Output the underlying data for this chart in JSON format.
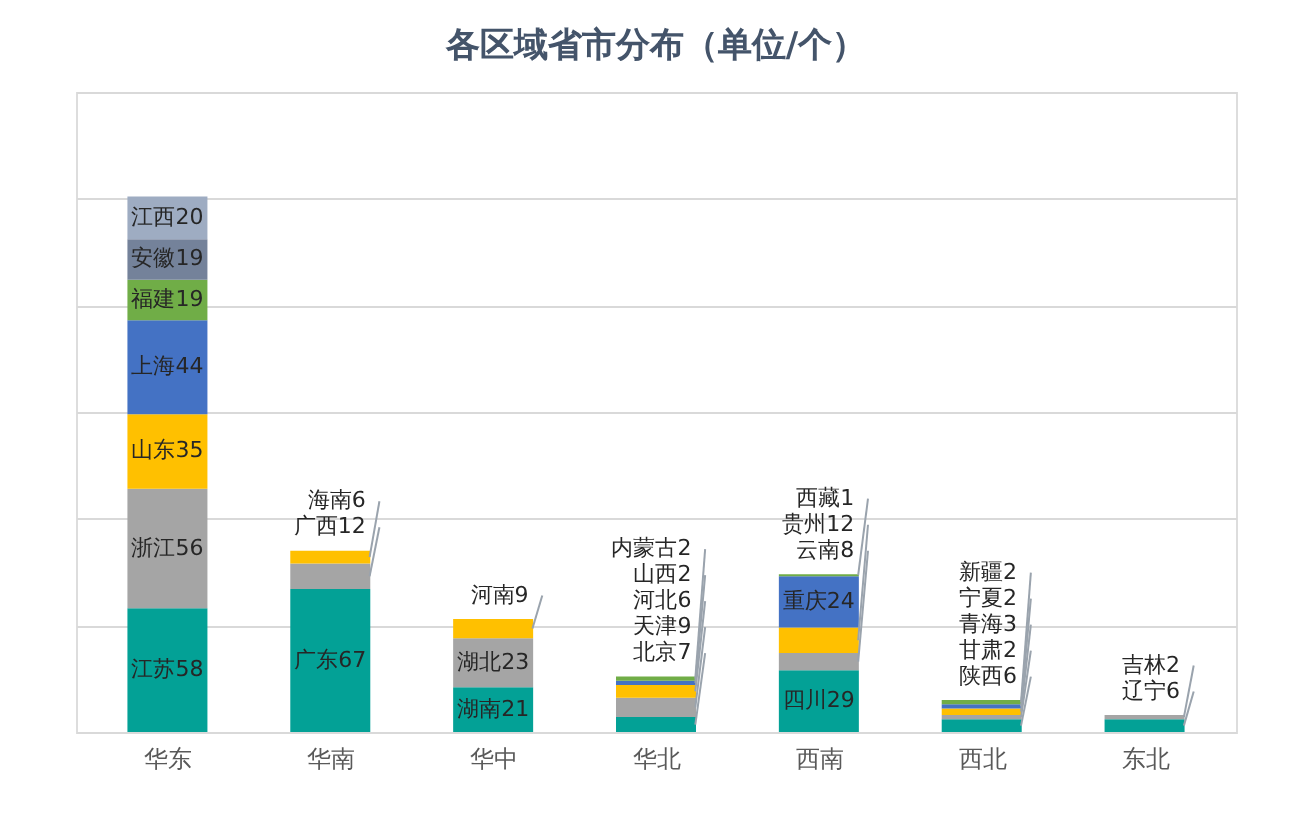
{
  "chart_data": {
    "type": "bar",
    "title": "各区域省市分布（单位/个）",
    "categories": [
      "华东",
      "华南",
      "华中",
      "华北",
      "西南",
      "西北",
      "东北"
    ],
    "stacked": true,
    "series": [
      {
        "color": "#03a196",
        "values": [
          58,
          67,
          21,
          7,
          29,
          6,
          6
        ],
        "value_labels": [
          "江苏58",
          "广东67",
          "湖南21",
          "北京7",
          "四川29",
          "陕西6",
          "辽宁6"
        ]
      },
      {
        "color": "#a5a5a5",
        "values": [
          56,
          12,
          23,
          9,
          8,
          2,
          2
        ],
        "value_labels": [
          "浙江56",
          "广西12",
          "湖北23",
          "天津9",
          "云南8",
          "甘肃2",
          "吉林2"
        ]
      },
      {
        "color": "#ffc000",
        "values": [
          35,
          6,
          9,
          6,
          12,
          3,
          null
        ],
        "value_labels": [
          "山东35",
          "海南6",
          "河南9",
          "河北6",
          "贵州12",
          "青海3",
          null
        ]
      },
      {
        "color": "#4472c4",
        "values": [
          44,
          null,
          null,
          2,
          24,
          2,
          null
        ],
        "value_labels": [
          "上海44",
          null,
          null,
          "山西2",
          "重庆24",
          "宁夏2",
          null
        ]
      },
      {
        "color": "#70ad47",
        "values": [
          19,
          null,
          null,
          2,
          1,
          2,
          null
        ],
        "value_labels": [
          "福建19",
          null,
          null,
          "内蒙古2",
          "西藏1",
          "新疆2",
          null
        ]
      },
      {
        "color": "#74829a",
        "values": [
          19,
          null,
          null,
          null,
          null,
          null,
          null
        ],
        "value_labels": [
          "安徽19",
          null,
          null,
          null,
          null,
          null,
          null
        ]
      },
      {
        "color": "#9eacc2",
        "values": [
          20,
          null,
          null,
          null,
          null,
          null,
          null
        ],
        "value_labels": [
          "江西20",
          null,
          null,
          null,
          null,
          null,
          null
        ]
      }
    ],
    "ylim": [
      0,
      300
    ],
    "yticks": [
      {
        "value": 0,
        "label": null
      },
      {
        "value": 50,
        "label": null
      },
      {
        "value": 100,
        "label": null
      },
      {
        "value": 150,
        "label": null
      },
      {
        "value": 200,
        "label": null
      },
      {
        "value": 250,
        "label": null
      },
      {
        "value": 300,
        "label": null
      }
    ],
    "grid": "y",
    "tick_labels": "x",
    "legend": false
  }
}
